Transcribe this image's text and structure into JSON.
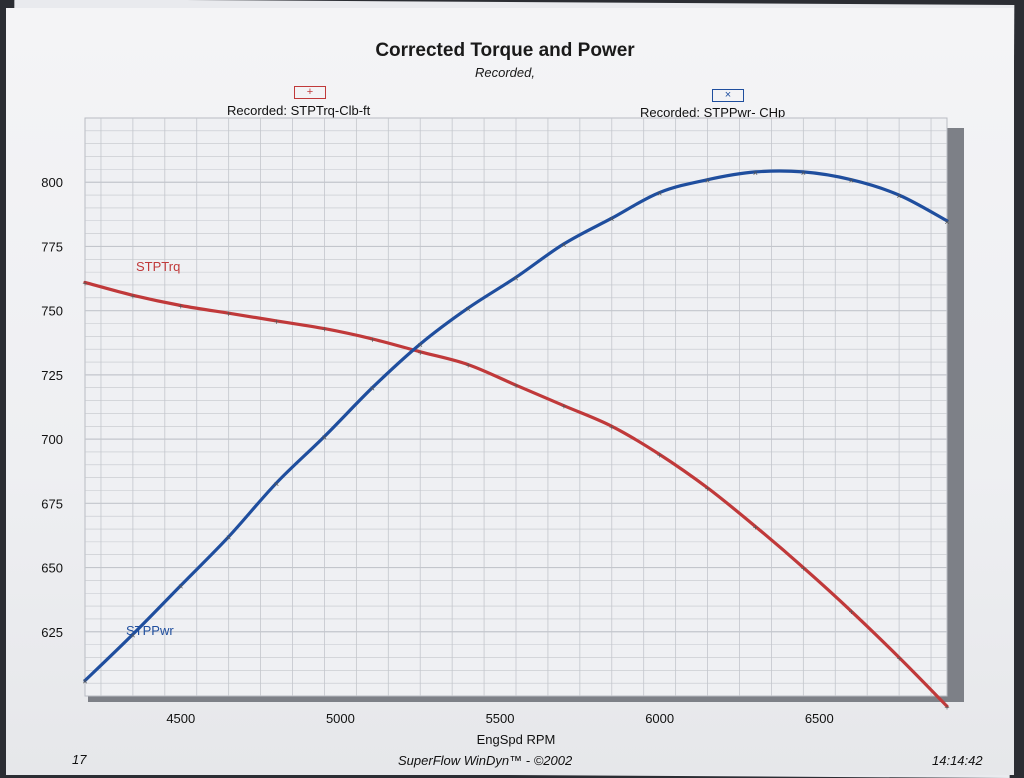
{
  "header": {
    "title": "Corrected Torque and Power",
    "subtitle": "Recorded,"
  },
  "legend": {
    "torque_label": "Recorded: STPTrq-Clb-ft",
    "torque_marker": "+",
    "power_label": "Recorded: STPPwr- CHp",
    "power_marker": "×"
  },
  "footer": {
    "left": "17",
    "center": "SuperFlow WinDyn™ - ©2002",
    "right": "14:14:42"
  },
  "colors": {
    "torque": "#c0393a",
    "power": "#1f4e9e",
    "grid": "#c3c6cc",
    "background": "#eff0f3"
  },
  "chart_data": {
    "type": "line",
    "title": "Corrected Torque and Power",
    "subtitle": "Recorded,",
    "xlabel": "EngSpd  RPM",
    "xlim": [
      4200,
      6900
    ],
    "ylim": [
      600,
      825
    ],
    "x_ticks": [
      4500,
      5000,
      5500,
      6000,
      6500
    ],
    "y_ticks": [
      625,
      650,
      675,
      700,
      725,
      750,
      775,
      800
    ],
    "grid": true,
    "series": [
      {
        "name": "STPTrq",
        "color": "#c0393a",
        "x": [
          4200,
          4350,
          4500,
          4650,
          4800,
          4950,
          5100,
          5250,
          5400,
          5550,
          5700,
          5850,
          6000,
          6150,
          6300,
          6450,
          6600,
          6750,
          6900
        ],
        "y": [
          761,
          756,
          752,
          749,
          746,
          743,
          739,
          734,
          729,
          721,
          713,
          705,
          694,
          681,
          666,
          650,
          633,
          615,
          596
        ]
      },
      {
        "name": "STPPwr",
        "color": "#1f4e9e",
        "x": [
          4200,
          4350,
          4500,
          4650,
          4800,
          4950,
          5100,
          5250,
          5400,
          5550,
          5700,
          5850,
          6000,
          6150,
          6300,
          6450,
          6600,
          6750,
          6900
        ],
        "y": [
          606,
          624,
          643,
          662,
          683,
          701,
          720,
          737,
          751,
          763,
          776,
          786,
          796,
          801,
          804,
          804,
          801,
          795,
          785
        ]
      }
    ]
  }
}
